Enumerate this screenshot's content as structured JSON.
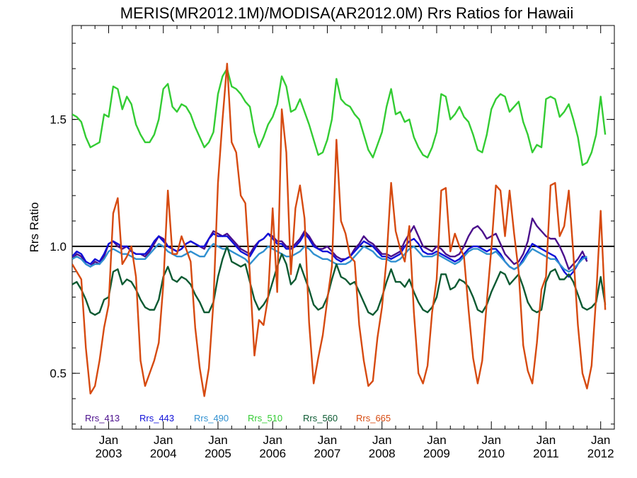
{
  "chart_data": {
    "type": "line",
    "title": "MERIS(MR2012.1M)/MODISA(AR2012.0M)  Rrs Ratios for Hawaii",
    "xlabel": "",
    "ylabel": "Rrs Ratio",
    "x_axis": {
      "type": "date",
      "range": [
        "2002-05",
        "2012-04"
      ],
      "ticks": [
        {
          "date": "2003-01",
          "month": "Jan",
          "year": "2003"
        },
        {
          "date": "2004-01",
          "month": "Jan",
          "year": "2004"
        },
        {
          "date": "2005-01",
          "month": "Jan",
          "year": "2005"
        },
        {
          "date": "2006-01",
          "month": "Jan",
          "year": "2006"
        },
        {
          "date": "2007-01",
          "month": "Jan",
          "year": "2007"
        },
        {
          "date": "2008-01",
          "month": "Jan",
          "year": "2008"
        },
        {
          "date": "2009-01",
          "month": "Jan",
          "year": "2009"
        },
        {
          "date": "2010-01",
          "month": "Jan",
          "year": "2010"
        },
        {
          "date": "2011-01",
          "month": "Jan",
          "year": "2011"
        },
        {
          "date": "2012-01",
          "month": "Jan",
          "year": "2012"
        }
      ]
    },
    "y_axis": {
      "range": [
        0.28,
        1.87
      ],
      "ticks": [
        {
          "value": 0.5,
          "label": "0.5"
        },
        {
          "value": 1.0,
          "label": "1.0"
        },
        {
          "value": 1.5,
          "label": "1.5"
        }
      ],
      "minor_step": 0.1
    },
    "reference_line": {
      "y": 1.0,
      "color": "#000000"
    },
    "grid": false,
    "legend_position": "bottom-left",
    "series": [
      {
        "name": "Rrs_413",
        "color": "#4b0f8c",
        "start": "2002-05",
        "values": [
          0.95,
          0.97,
          0.96,
          0.93,
          0.92,
          0.94,
          0.93,
          0.96,
          1.01,
          1.02,
          1.0,
          0.99,
          1.0,
          0.98,
          0.97,
          0.97,
          0.96,
          0.98,
          1.01,
          1.04,
          1.03,
          1.0,
          0.99,
          0.98,
          0.99,
          1.01,
          1.02,
          1.01,
          1.0,
          0.99,
          1.03,
          1.06,
          1.05,
          1.04,
          1.05,
          1.03,
          1.01,
          0.99,
          0.98,
          0.97,
          1.0,
          1.02,
          1.03,
          1.05,
          1.04,
          1.02,
          1.02,
          1.0,
          0.99,
          1.01,
          1.03,
          1.06,
          1.04,
          1.01,
          0.99,
          0.99,
          1.0,
          0.98,
          0.96,
          0.95,
          0.95,
          0.96,
          0.99,
          1.01,
          1.04,
          1.02,
          1.01,
          0.99,
          0.97,
          0.97,
          0.96,
          0.97,
          0.98,
          1.02,
          1.05,
          1.08,
          1.04,
          1.0,
          0.99,
          0.98,
          1.0,
          0.99,
          0.97,
          0.96,
          0.96,
          0.97,
          1.0,
          1.04,
          1.07,
          1.08,
          1.06,
          1.03,
          1.04,
          1.05,
          1.01,
          0.97,
          0.95,
          0.93,
          0.94,
          0.97,
          1.02,
          1.11,
          1.08,
          1.06,
          1.04,
          1.03,
          1.03,
          1.0,
          0.96,
          0.91,
          0.93,
          0.95,
          0.98,
          0.94
        ]
      },
      {
        "name": "Rrs_443",
        "color": "#1010d8",
        "start": "2002-05",
        "values": [
          0.96,
          0.98,
          0.97,
          0.94,
          0.93,
          0.95,
          0.94,
          0.97,
          1.01,
          1.02,
          1.01,
          1.0,
          1.0,
          0.98,
          0.97,
          0.97,
          0.97,
          0.99,
          1.02,
          1.04,
          1.02,
          1.0,
          0.99,
          0.98,
          0.99,
          1.01,
          1.02,
          1.01,
          1.0,
          1.0,
          1.03,
          1.05,
          1.04,
          1.04,
          1.04,
          1.02,
          1.0,
          0.98,
          0.97,
          0.96,
          0.99,
          1.02,
          1.03,
          1.05,
          1.03,
          1.01,
          1.01,
          0.99,
          0.99,
          1.0,
          1.02,
          1.05,
          1.03,
          1.0,
          0.99,
          0.98,
          0.98,
          0.97,
          0.95,
          0.94,
          0.95,
          0.96,
          0.98,
          1.0,
          1.02,
          1.01,
          1.0,
          0.98,
          0.96,
          0.96,
          0.95,
          0.96,
          0.97,
          1.0,
          1.02,
          1.03,
          1.01,
          0.98,
          0.97,
          0.97,
          0.98,
          0.97,
          0.96,
          0.95,
          0.94,
          0.95,
          0.97,
          0.99,
          1.0,
          1.0,
          0.99,
          0.98,
          0.99,
          0.99,
          0.97,
          0.94,
          0.92,
          0.91,
          0.92,
          0.95,
          0.98,
          1.01,
          1.0,
          0.99,
          0.98,
          0.97,
          0.96,
          0.93,
          0.9,
          0.88,
          0.9,
          0.93,
          0.96,
          0.95
        ]
      },
      {
        "name": "Rrs_490",
        "color": "#3090d0",
        "start": "2002-05",
        "values": [
          0.95,
          0.96,
          0.95,
          0.93,
          0.92,
          0.93,
          0.93,
          0.95,
          0.98,
          0.99,
          0.98,
          0.97,
          0.97,
          0.96,
          0.95,
          0.95,
          0.95,
          0.97,
          0.99,
          1.01,
          1.0,
          0.98,
          0.97,
          0.96,
          0.96,
          0.97,
          0.98,
          0.97,
          0.96,
          0.96,
          0.99,
          1.01,
          1.0,
          0.99,
          0.99,
          0.98,
          0.97,
          0.96,
          0.95,
          0.93,
          0.95,
          0.97,
          0.98,
          1.0,
          0.99,
          0.98,
          0.97,
          0.96,
          0.96,
          0.97,
          0.98,
          1.0,
          0.99,
          0.97,
          0.96,
          0.95,
          0.95,
          0.94,
          0.93,
          0.93,
          0.93,
          0.94,
          0.96,
          0.98,
          1.0,
          0.99,
          0.98,
          0.96,
          0.95,
          0.95,
          0.94,
          0.94,
          0.95,
          0.97,
          0.99,
          1.0,
          0.98,
          0.96,
          0.96,
          0.96,
          0.97,
          0.96,
          0.95,
          0.94,
          0.93,
          0.94,
          0.96,
          0.98,
          0.99,
          0.99,
          0.98,
          0.97,
          0.97,
          0.98,
          0.96,
          0.94,
          0.92,
          0.91,
          0.92,
          0.94,
          0.97,
          0.99,
          0.98,
          0.97,
          0.96,
          0.95,
          0.95,
          0.93,
          0.91,
          0.9,
          0.91,
          0.93,
          0.95,
          0.96
        ]
      },
      {
        "name": "Rrs_510",
        "color": "#33cc33",
        "start": "2002-05",
        "values": [
          1.52,
          1.51,
          1.49,
          1.43,
          1.39,
          1.4,
          1.41,
          1.52,
          1.51,
          1.63,
          1.62,
          1.54,
          1.59,
          1.56,
          1.48,
          1.44,
          1.41,
          1.41,
          1.44,
          1.5,
          1.62,
          1.64,
          1.55,
          1.53,
          1.56,
          1.55,
          1.52,
          1.47,
          1.43,
          1.39,
          1.41,
          1.45,
          1.6,
          1.67,
          1.7,
          1.63,
          1.62,
          1.6,
          1.57,
          1.55,
          1.45,
          1.39,
          1.43,
          1.48,
          1.51,
          1.56,
          1.67,
          1.63,
          1.53,
          1.54,
          1.58,
          1.53,
          1.48,
          1.42,
          1.36,
          1.37,
          1.42,
          1.5,
          1.66,
          1.58,
          1.56,
          1.55,
          1.52,
          1.5,
          1.44,
          1.38,
          1.35,
          1.4,
          1.45,
          1.55,
          1.62,
          1.52,
          1.53,
          1.49,
          1.5,
          1.43,
          1.39,
          1.36,
          1.35,
          1.39,
          1.45,
          1.6,
          1.59,
          1.5,
          1.52,
          1.55,
          1.51,
          1.49,
          1.44,
          1.38,
          1.37,
          1.44,
          1.54,
          1.58,
          1.6,
          1.59,
          1.53,
          1.55,
          1.57,
          1.49,
          1.44,
          1.37,
          1.4,
          1.39,
          1.58,
          1.59,
          1.58,
          1.51,
          1.53,
          1.56,
          1.5,
          1.43,
          1.32,
          1.33,
          1.37,
          1.44,
          1.59,
          1.44
        ]
      },
      {
        "name": "Rrs_560",
        "color": "#0c5a32",
        "start": "2002-05",
        "values": [
          0.85,
          0.86,
          0.83,
          0.79,
          0.74,
          0.73,
          0.74,
          0.79,
          0.8,
          0.9,
          0.91,
          0.85,
          0.87,
          0.86,
          0.83,
          0.79,
          0.76,
          0.75,
          0.75,
          0.79,
          0.88,
          0.92,
          0.87,
          0.86,
          0.88,
          0.87,
          0.85,
          0.81,
          0.78,
          0.74,
          0.74,
          0.78,
          0.88,
          0.95,
          1.0,
          0.94,
          0.93,
          0.92,
          0.93,
          0.86,
          0.79,
          0.75,
          0.77,
          0.8,
          0.86,
          0.92,
          0.97,
          0.93,
          0.85,
          0.87,
          0.93,
          0.88,
          0.83,
          0.77,
          0.75,
          0.76,
          0.8,
          0.87,
          0.93,
          0.88,
          0.87,
          0.85,
          0.86,
          0.82,
          0.78,
          0.74,
          0.73,
          0.75,
          0.8,
          0.86,
          0.91,
          0.86,
          0.86,
          0.84,
          0.87,
          0.82,
          0.78,
          0.75,
          0.74,
          0.76,
          0.8,
          0.89,
          0.89,
          0.83,
          0.84,
          0.87,
          0.86,
          0.84,
          0.8,
          0.75,
          0.74,
          0.77,
          0.82,
          0.86,
          0.9,
          0.89,
          0.85,
          0.87,
          0.89,
          0.84,
          0.78,
          0.75,
          0.74,
          0.75,
          0.86,
          0.9,
          0.91,
          0.87,
          0.87,
          0.89,
          0.86,
          0.81,
          0.76,
          0.75,
          0.76,
          0.78,
          0.88,
          0.77
        ]
      },
      {
        "name": "Rrs_665",
        "color": "#d64a10",
        "start": "2002-05",
        "values": [
          0.93,
          0.9,
          0.87,
          0.6,
          0.42,
          0.45,
          0.55,
          0.68,
          0.77,
          1.13,
          1.19,
          0.93,
          0.96,
          1.0,
          0.88,
          0.55,
          0.45,
          0.5,
          0.55,
          0.62,
          0.85,
          1.22,
          0.97,
          0.97,
          1.04,
          0.99,
          0.94,
          0.68,
          0.52,
          0.41,
          0.52,
          0.78,
          1.25,
          1.5,
          1.72,
          1.41,
          1.37,
          1.2,
          1.17,
          0.89,
          0.57,
          0.71,
          0.69,
          0.8,
          1.15,
          0.82,
          1.54,
          1.37,
          0.89,
          1.15,
          1.24,
          1.11,
          0.7,
          0.46,
          0.56,
          0.65,
          0.79,
          0.92,
          1.42,
          1.1,
          1.05,
          0.96,
          0.94,
          0.69,
          0.55,
          0.45,
          0.47,
          0.64,
          0.76,
          0.95,
          1.25,
          1.06,
          0.99,
          0.94,
          1.08,
          0.74,
          0.5,
          0.46,
          0.53,
          0.74,
          0.87,
          1.22,
          1.23,
          0.98,
          1.05,
          1.0,
          0.96,
          0.75,
          0.56,
          0.46,
          0.55,
          0.78,
          0.99,
          1.24,
          1.22,
          1.04,
          1.22,
          1.05,
          0.9,
          0.61,
          0.51,
          0.46,
          0.62,
          0.83,
          0.88,
          1.24,
          1.25,
          1.04,
          1.08,
          1.22,
          0.97,
          0.69,
          0.5,
          0.44,
          0.53,
          0.8,
          1.14,
          0.75
        ]
      }
    ]
  }
}
